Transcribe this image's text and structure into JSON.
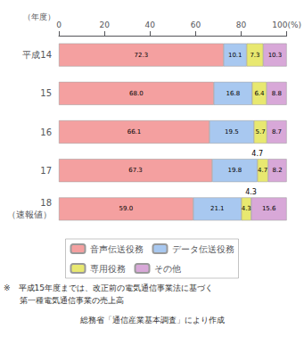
{
  "chart_data": {
    "type": "bar",
    "orientation": "horizontal",
    "stacked": true,
    "data_labels": true,
    "legend": "bottom",
    "grid": false,
    "ylabel": "（年度）",
    "categories": [
      "平成14",
      "15",
      "16",
      "17",
      "18"
    ],
    "series": [
      {
        "name": "音声伝送役務",
        "color": "#F4A0A0",
        "values": [
          72.3,
          68.0,
          66.1,
          67.3,
          59.0
        ],
        "value_labels": [
          "72.3",
          "68.0",
          "66.1",
          "67.3",
          "59.0"
        ]
      },
      {
        "name": "データ伝送役務",
        "color": "#A8C8F0",
        "values": [
          10.1,
          16.8,
          19.5,
          19.8,
          21.1
        ],
        "value_labels": [
          "10.1",
          "16.8",
          "19.5",
          "19.8",
          "21.1"
        ]
      },
      {
        "name": "専用役務",
        "color": "#E8E870",
        "values": [
          7.3,
          6.4,
          5.7,
          4.7,
          4.3
        ],
        "value_labels": [
          "7.3",
          "6.4",
          "5.7",
          "4.7",
          "4.3"
        ]
      },
      {
        "name": "その他",
        "color": "#D8A8D8",
        "values": [
          10.3,
          8.8,
          8.7,
          8.2,
          15.6
        ],
        "value_labels": [
          "10.3",
          "8.8",
          "8.7",
          "8.2",
          "15.6"
        ]
      }
    ],
    "xlim": [
      0,
      100
    ],
    "xticks": [
      0,
      20,
      40,
      60,
      80,
      {
        "value": 100,
        "label": "100(%)"
      }
    ],
    "annotations": [
      {
        "text": "（速報値）",
        "category": "18"
      },
      {
        "text": "4.7",
        "x": 87.1,
        "category": "17"
      },
      {
        "text": "4.3",
        "x": 84.3,
        "category": "18"
      }
    ],
    "notes": [
      "※　平成15年度までは、改正前の電気通信事業法に基づく",
      "　　第一種電気通信事業の売上高",
      "総務省「通信産業基本調査」により作成"
    ]
  }
}
